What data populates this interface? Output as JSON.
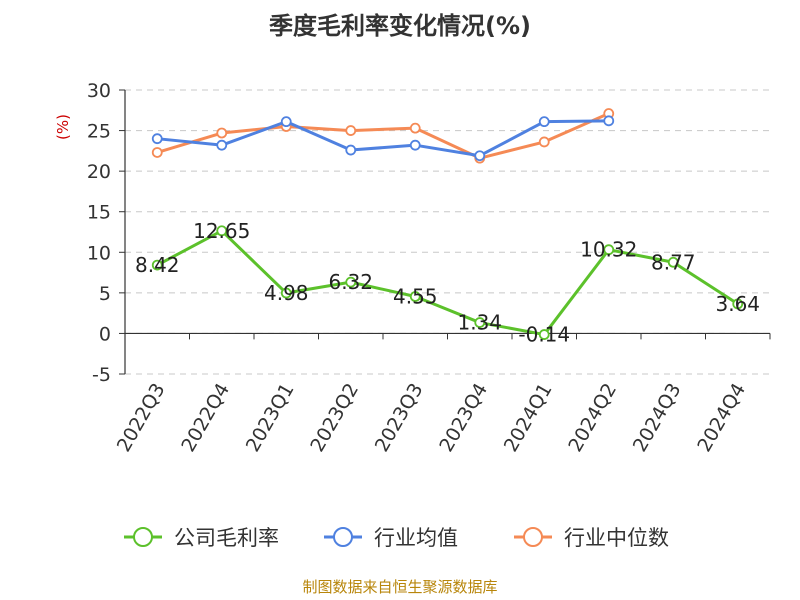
{
  "chart_data": {
    "type": "line",
    "title": "季度毛利率变化情况(%)",
    "ylabel": "(%)",
    "ylim": [
      -5,
      30
    ],
    "yticks": [
      -5,
      0,
      5,
      10,
      15,
      20,
      25,
      30
    ],
    "grid": true,
    "legend_position": "bottom",
    "categories": [
      "2022Q3",
      "2022Q4",
      "2023Q1",
      "2023Q2",
      "2023Q3",
      "2023Q4",
      "2024Q1",
      "2024Q2",
      "2024Q3",
      "2024Q4"
    ],
    "series": [
      {
        "name": "公司毛利率",
        "color": "#5cc12b",
        "show_labels": true,
        "values": [
          8.42,
          12.65,
          4.98,
          6.32,
          4.55,
          1.34,
          -0.14,
          10.32,
          8.77,
          3.64
        ]
      },
      {
        "name": "行业均值",
        "color": "#4f81e0",
        "show_labels": false,
        "values": [
          24.0,
          23.2,
          26.1,
          22.6,
          23.2,
          21.9,
          26.1,
          26.2,
          null,
          null
        ]
      },
      {
        "name": "行业中位数",
        "color": "#f58a55",
        "show_labels": false,
        "values": [
          22.3,
          24.7,
          25.5,
          25.0,
          25.3,
          21.6,
          23.6,
          27.1,
          null,
          null
        ]
      }
    ],
    "source": "制图数据来自恒生聚源数据库"
  }
}
